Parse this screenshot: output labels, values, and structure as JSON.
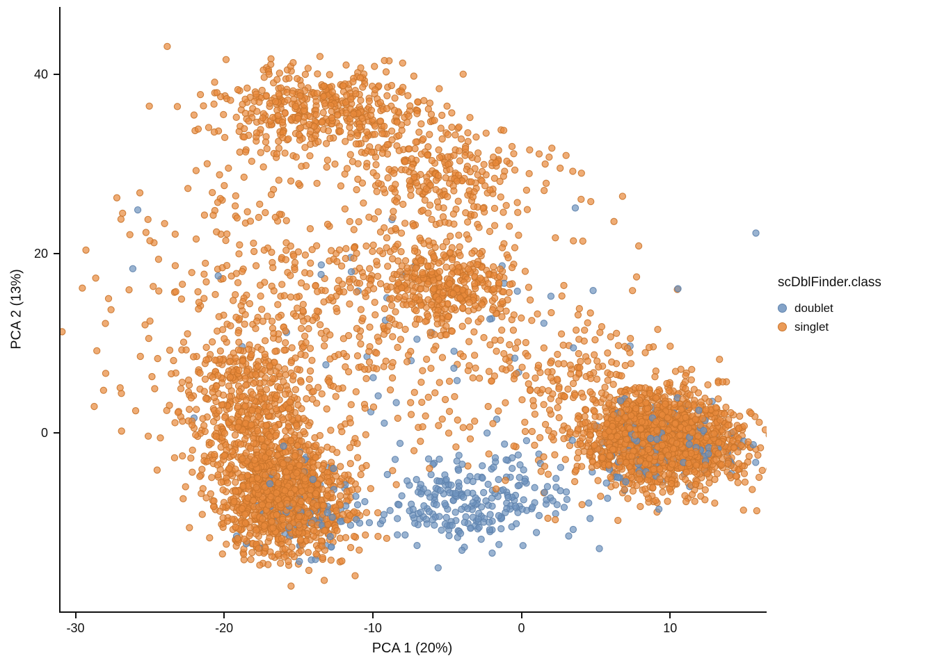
{
  "chart_data": {
    "type": "scatter",
    "title": "",
    "xlabel": "PCA 1 (20%)",
    "ylabel": "PCA 2 (13%)",
    "legend_title": "scDblFinder.class",
    "legend_position": "right",
    "grid": false,
    "background": "#ffffff",
    "axis_color": "#111111",
    "xlim": [
      -31.1,
      16.4
    ],
    "ylim": [
      -19.9,
      47.5
    ],
    "x_ticks": [
      -30,
      -20,
      -10,
      0,
      10
    ],
    "y_ticks": [
      0,
      20,
      40
    ],
    "point_radius": 4.6,
    "point_alpha": 0.7,
    "seed": 42,
    "series": [
      {
        "name": "doublet",
        "color": "#6E93BE",
        "stroke": "#5E82AC",
        "clusters": [
          {
            "n": 240,
            "cx": -3.5,
            "cy": -7.5,
            "sdx": 3.3,
            "sdy": 2.3
          },
          {
            "n": 130,
            "cx": 9.3,
            "cy": -1.5,
            "sdx": 2.8,
            "sdy": 2.4
          },
          {
            "n": 90,
            "cx": -15.0,
            "cy": -8.5,
            "sdx": 2.0,
            "sdy": 2.6
          },
          {
            "n": 55,
            "cx": -6.0,
            "cy": 9.0,
            "sdx": 8.0,
            "sdy": 8.0
          }
        ]
      },
      {
        "name": "singlet",
        "color": "#E8893B",
        "stroke": "#C9742B",
        "clusters": [
          {
            "n": 450,
            "cx": -13.5,
            "cy": 36.0,
            "sdx": 3.6,
            "sdy": 2.6
          },
          {
            "n": 260,
            "cx": -5.5,
            "cy": 28.5,
            "sdx": 3.2,
            "sdy": 3.2
          },
          {
            "n": 300,
            "cx": -5.2,
            "cy": 16.5,
            "sdx": 2.1,
            "sdy": 2.2
          },
          {
            "n": 1000,
            "cx": -16.0,
            "cy": -7.5,
            "sdx": 2.2,
            "sdy": 3.0
          },
          {
            "n": 550,
            "cx": -18.3,
            "cy": 1.5,
            "sdx": 2.2,
            "sdy": 4.5
          },
          {
            "n": 1500,
            "cx": 9.5,
            "cy": -0.8,
            "sdx": 2.6,
            "sdy": 2.7
          },
          {
            "n": 650,
            "cx": -12.0,
            "cy": 14.0,
            "sdx": 8.0,
            "sdy": 9.0
          },
          {
            "n": 200,
            "cx": 4.0,
            "cy": 4.0,
            "sdx": 3.5,
            "sdy": 4.0
          }
        ]
      }
    ]
  }
}
